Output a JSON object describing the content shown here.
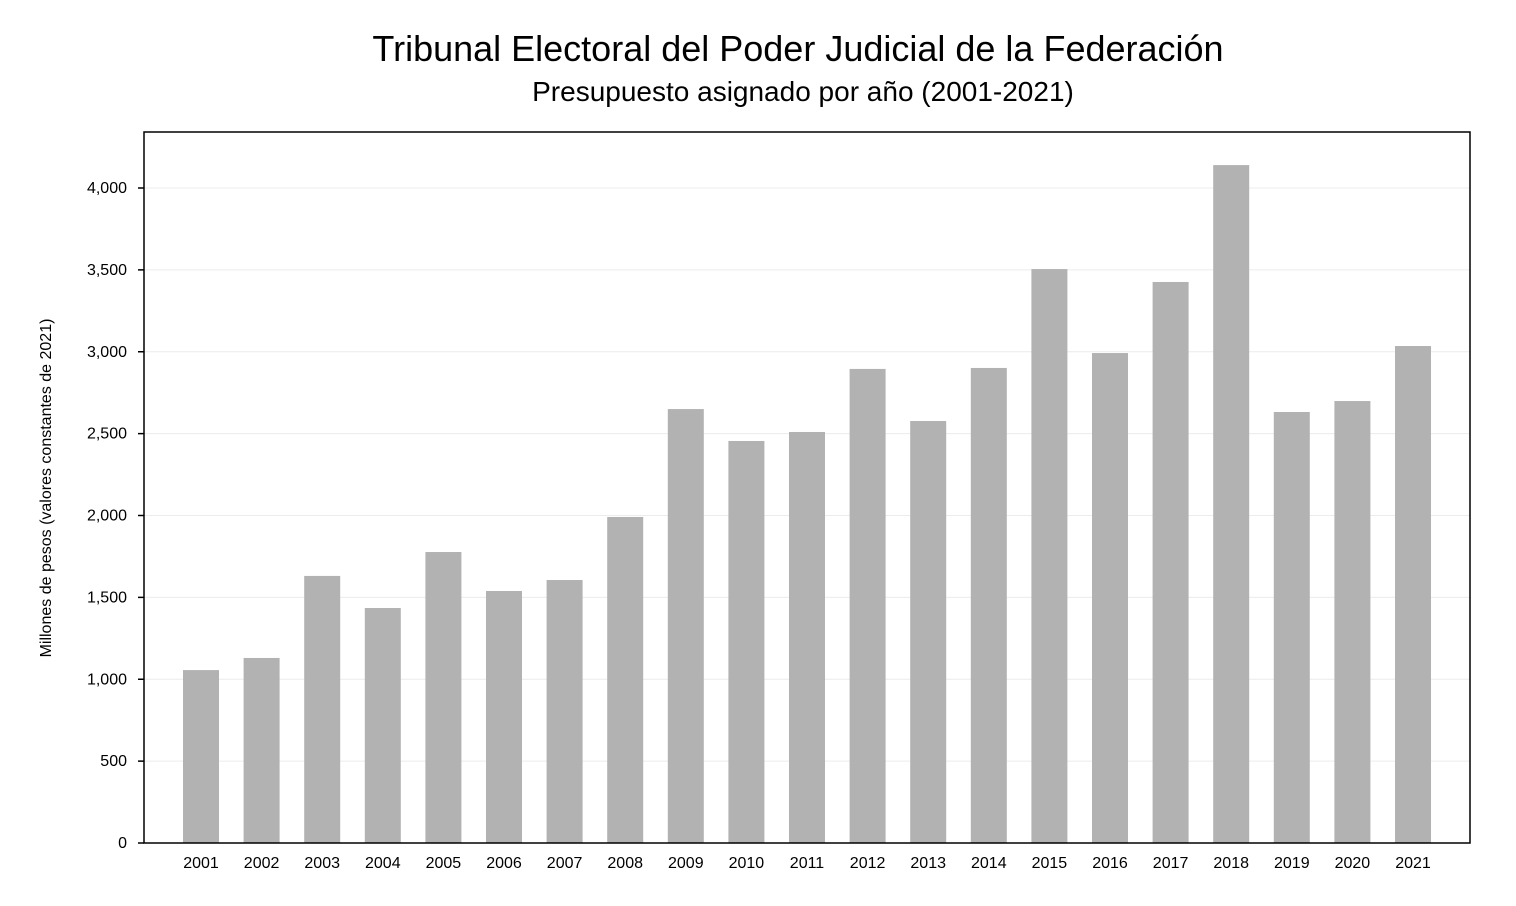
{
  "chart_data": {
    "type": "bar",
    "title": "Tribunal Electoral del Poder Judicial de la Federación",
    "subtitle": "Presupuesto asignado por año (2001-2021)",
    "xlabel": "",
    "ylabel": "Millones de pesos (valores constantes de 2021)",
    "categories": [
      "2001",
      "2002",
      "2003",
      "2004",
      "2005",
      "2006",
      "2007",
      "2008",
      "2009",
      "2010",
      "2011",
      "2012",
      "2013",
      "2014",
      "2015",
      "2016",
      "2017",
      "2018",
      "2019",
      "2020",
      "2021"
    ],
    "values": [
      1056,
      1130,
      1631,
      1435,
      1777,
      1539,
      1606,
      1991,
      2650,
      2455,
      2510,
      2895,
      2577,
      2901,
      3505,
      2992,
      3426,
      4140,
      2632,
      2699,
      3035
    ],
    "ylim": [
      0,
      4340
    ],
    "yticks": [
      0,
      500,
      1000,
      1500,
      2000,
      2500,
      3000,
      3500,
      4000
    ],
    "ytick_labels": [
      "0",
      "500",
      "1,000",
      "1,500",
      "2,000",
      "2,500",
      "3,000",
      "3,500",
      "4,000"
    ],
    "grid": true,
    "bar_color": "#b2b2b2"
  }
}
